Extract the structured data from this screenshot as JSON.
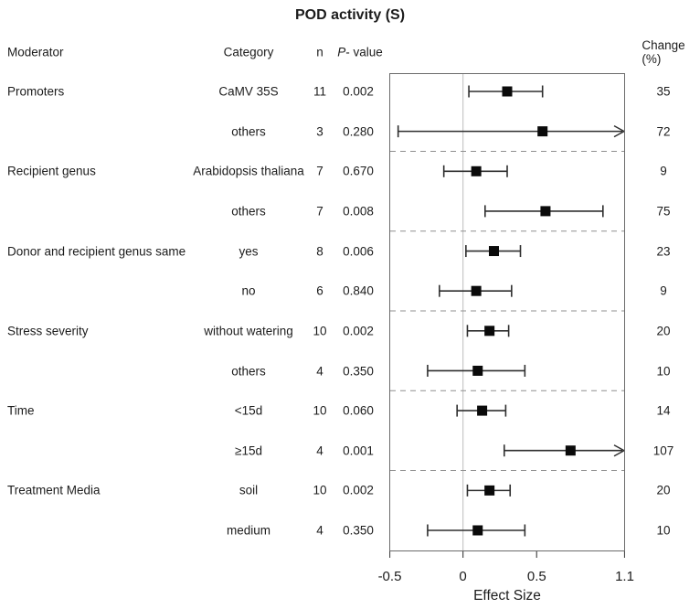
{
  "title": "POD activity (S)",
  "columns": {
    "moderator": "Moderator",
    "category": "Category",
    "n": "n",
    "p_italic": "P",
    "p_rest": "- value",
    "change": "Change (%)"
  },
  "rows": [
    {
      "moderator": "Promoters",
      "category": "CaMV 35S",
      "n": "11",
      "p": "0.002",
      "change": "35"
    },
    {
      "moderator": "",
      "category": "others",
      "n": "3",
      "p": "0.280",
      "change": "72"
    },
    {
      "moderator": "Recipient genus",
      "category": "Arabidopsis thaliana",
      "n": "7",
      "p": "0.670",
      "change": "9"
    },
    {
      "moderator": "",
      "category": "others",
      "n": "7",
      "p": "0.008",
      "change": "75"
    },
    {
      "moderator": "Donor and recipient genus same",
      "category": "yes",
      "n": "8",
      "p": "0.006",
      "change": "23"
    },
    {
      "moderator": "",
      "category": "no",
      "n": "6",
      "p": "0.840",
      "change": "9"
    },
    {
      "moderator": "Stress severity",
      "category": "without watering",
      "n": "10",
      "p": "0.002",
      "change": "20"
    },
    {
      "moderator": "",
      "category": "others",
      "n": "4",
      "p": "0.350",
      "change": "10"
    },
    {
      "moderator": "Time",
      "category": "<15d",
      "n": "10",
      "p": "0.060",
      "change": "14"
    },
    {
      "moderator": "",
      "category": "≥15d",
      "n": "4",
      "p": "0.001",
      "change": "107"
    },
    {
      "moderator": "Treatment Media",
      "category": "soil",
      "n": "10",
      "p": "0.002",
      "change": "20"
    },
    {
      "moderator": "",
      "category": "medium",
      "n": "4",
      "p": "0.350",
      "change": "10"
    }
  ],
  "axis": {
    "label": "Effect Size",
    "xlim": [
      -0.5,
      1.1
    ],
    "zero_ref": 0,
    "ticks": [
      {
        "v": -0.5,
        "label": "-0.5"
      },
      {
        "v": 0,
        "label": "0"
      },
      {
        "v": 0.5,
        "label": "0.5"
      },
      {
        "v": 1.1,
        "label": "1.1"
      }
    ]
  },
  "colors": {
    "text": "#1c1c1c",
    "box_border": "#6b6b6b",
    "zero_line": "#c8c8c8",
    "divider": "#8f8f8f",
    "ci_line": "#2e2e2e",
    "marker": "#0a0a0a"
  },
  "chart_data": {
    "type": "scatter",
    "subtype": "forest-plot",
    "title": "POD activity (S)",
    "xlabel": "Effect Size",
    "xlim": [
      -0.5,
      1.1
    ],
    "reference_line_x": 0,
    "grid": false,
    "legend": "none",
    "categories": [
      "CaMV 35S",
      "others",
      "Arabidopsis thaliana",
      "others",
      "yes",
      "no",
      "without watering",
      "others",
      "<15d",
      "≥15d",
      "soil",
      "medium"
    ],
    "groups": [
      "Promoters",
      "Promoters",
      "Recipient genus",
      "Recipient genus",
      "Donor and recipient genus same",
      "Donor and recipient genus same",
      "Stress severity",
      "Stress severity",
      "Time",
      "Time",
      "Treatment Media",
      "Treatment Media"
    ],
    "points": [
      {
        "est": 0.3,
        "lo": 0.04,
        "hi": 0.54,
        "arrow_right": false,
        "n": 11,
        "p": 0.002,
        "change_pct": 35
      },
      {
        "est": 0.54,
        "lo": -0.44,
        "hi": 1.1,
        "arrow_right": true,
        "n": 3,
        "p": 0.28,
        "change_pct": 72
      },
      {
        "est": 0.09,
        "lo": -0.13,
        "hi": 0.3,
        "arrow_right": false,
        "n": 7,
        "p": 0.67,
        "change_pct": 9
      },
      {
        "est": 0.56,
        "lo": 0.15,
        "hi": 0.95,
        "arrow_right": false,
        "n": 7,
        "p": 0.008,
        "change_pct": 75
      },
      {
        "est": 0.21,
        "lo": 0.02,
        "hi": 0.39,
        "arrow_right": false,
        "n": 8,
        "p": 0.006,
        "change_pct": 23
      },
      {
        "est": 0.09,
        "lo": -0.16,
        "hi": 0.33,
        "arrow_right": false,
        "n": 6,
        "p": 0.84,
        "change_pct": 9
      },
      {
        "est": 0.18,
        "lo": 0.03,
        "hi": 0.31,
        "arrow_right": false,
        "n": 10,
        "p": 0.002,
        "change_pct": 20
      },
      {
        "est": 0.1,
        "lo": -0.24,
        "hi": 0.42,
        "arrow_right": false,
        "n": 4,
        "p": 0.35,
        "change_pct": 10
      },
      {
        "est": 0.13,
        "lo": -0.04,
        "hi": 0.29,
        "arrow_right": false,
        "n": 10,
        "p": 0.06,
        "change_pct": 14
      },
      {
        "est": 0.73,
        "lo": 0.28,
        "hi": 1.1,
        "arrow_right": true,
        "n": 4,
        "p": 0.001,
        "change_pct": 107
      },
      {
        "est": 0.18,
        "lo": 0.03,
        "hi": 0.32,
        "arrow_right": false,
        "n": 10,
        "p": 0.002,
        "change_pct": 20
      },
      {
        "est": 0.1,
        "lo": -0.24,
        "hi": 0.42,
        "arrow_right": false,
        "n": 4,
        "p": 0.35,
        "change_pct": 10
      }
    ]
  }
}
